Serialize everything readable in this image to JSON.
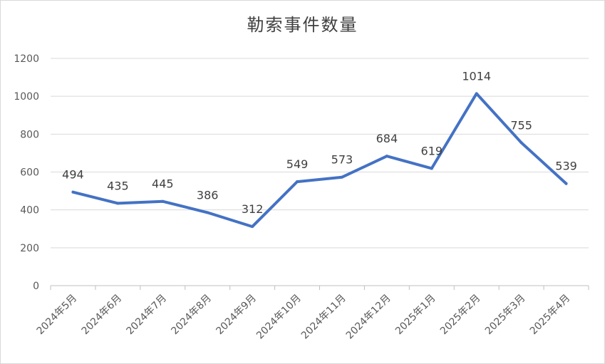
{
  "chart_data": {
    "type": "line",
    "title": "勒索事件数量",
    "categories": [
      "2024年5月",
      "2024年6月",
      "2024年7月",
      "2024年8月",
      "2024年9月",
      "2024年10月",
      "2024年11月",
      "2024年12月",
      "2025年1月",
      "2025年2月",
      "2025年3月",
      "2025年4月"
    ],
    "values": [
      494,
      435,
      445,
      386,
      312,
      549,
      573,
      684,
      619,
      1014,
      755,
      539
    ],
    "ylim": [
      0,
      1200
    ],
    "yticks": [
      0,
      200,
      400,
      600,
      800,
      1000,
      1200
    ],
    "grid": true,
    "legend": "none",
    "line_color": "#4472C4"
  }
}
